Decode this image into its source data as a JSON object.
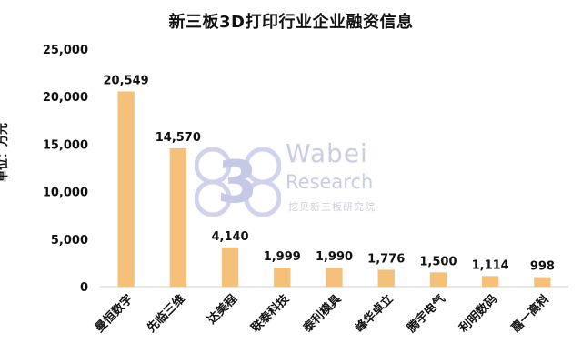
{
  "chart_data": {
    "type": "bar",
    "title": "新三板3D打印行业企业融资信息",
    "ylabel": "单位：万元",
    "xlabel": "",
    "ylim": [
      0,
      25000
    ],
    "yticks": [
      "0",
      "5,000",
      "10,000",
      "15,000",
      "20,000",
      "25,000"
    ],
    "ytick_values": [
      0,
      5000,
      10000,
      15000,
      20000,
      25000
    ],
    "categories": [
      "曼恒数字",
      "先临三维",
      "达美程",
      "联泰科技",
      "泰利模具",
      "峰华卓立",
      "腾宇电气",
      "利明数码",
      "嘉一高科"
    ],
    "values": [
      20549,
      14570,
      4140,
      1999,
      1990,
      1776,
      1500,
      1114,
      998
    ],
    "value_labels": [
      "20,549",
      "14,570",
      "4,140",
      "1,999",
      "1,990",
      "1,776",
      "1,500",
      "1,114",
      "998"
    ],
    "grid": false,
    "legend": "none",
    "bar_color": "#F4C07A"
  },
  "watermark": {
    "brand": "Wabei",
    "subtitle": "Research",
    "cn": "挖贝新三板研究院",
    "logo_char": "3"
  }
}
